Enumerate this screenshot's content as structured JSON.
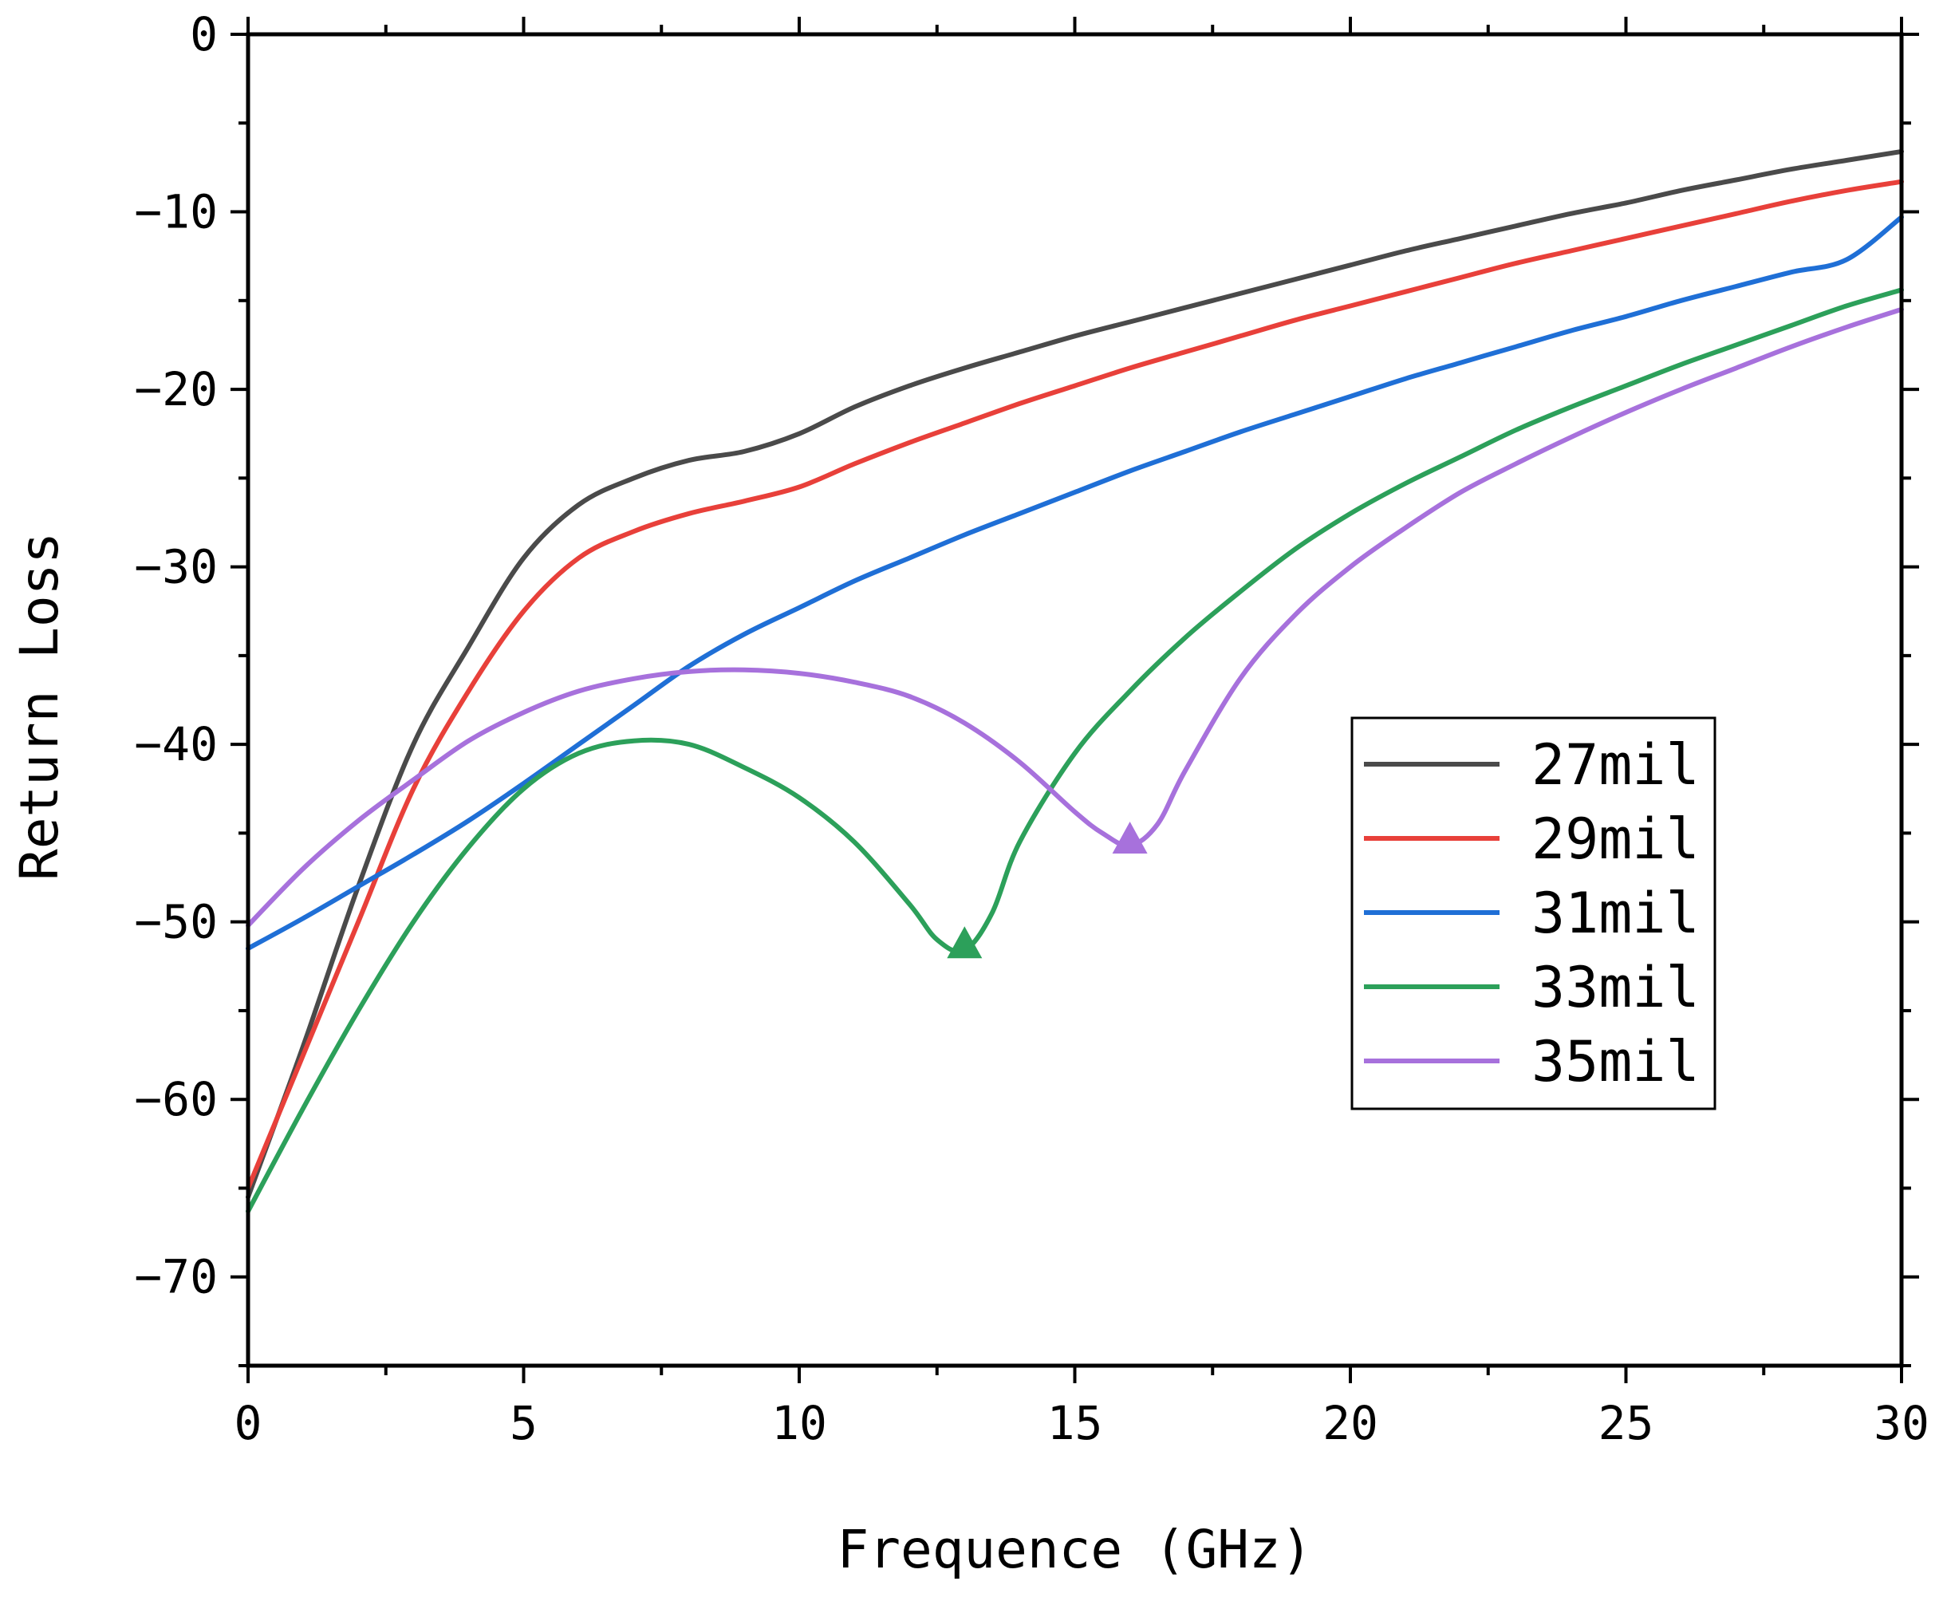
{
  "chart_data": {
    "type": "line",
    "title": "",
    "xlabel": "Frequence (GHz)",
    "ylabel": "Return Loss",
    "xlim": [
      0,
      30
    ],
    "ylim": [
      -75,
      0
    ],
    "xticks": [
      0,
      5,
      10,
      15,
      20,
      25,
      30
    ],
    "yticks": [
      0,
      -10,
      -20,
      -30,
      -40,
      -50,
      -60,
      -70
    ],
    "x_tick_labels": [
      "0",
      "5",
      "10",
      "15",
      "20",
      "25",
      "30"
    ],
    "y_tick_labels": [
      "0",
      "−10",
      "−20",
      "−30",
      "−40",
      "−50",
      "−60",
      "−70"
    ],
    "grid": false,
    "legend_position": "center-right",
    "series": [
      {
        "name": "27mil",
        "color": "#4a4a4a",
        "x": [
          0,
          1,
          2,
          3,
          4,
          5,
          6,
          7,
          8,
          9,
          10,
          11,
          12,
          13,
          14,
          15,
          16,
          17,
          18,
          19,
          20,
          21,
          22,
          23,
          24,
          25,
          26,
          27,
          28,
          29,
          30
        ],
        "y": [
          -65.5,
          -57,
          -48,
          -40,
          -34.5,
          -29.5,
          -26.5,
          -25,
          -24,
          -23.5,
          -22.5,
          -21,
          -19.8,
          -18.8,
          -17.9,
          -17,
          -16.2,
          -15.4,
          -14.6,
          -13.8,
          -13,
          -12.2,
          -11.5,
          -10.8,
          -10.1,
          -9.5,
          -8.8,
          -8.2,
          -7.6,
          -7.1,
          -6.6
        ]
      },
      {
        "name": "29mil",
        "color": "#e8403a",
        "x": [
          0,
          1,
          2,
          3,
          4,
          5,
          6,
          7,
          8,
          9,
          10,
          11,
          12,
          13,
          14,
          15,
          16,
          17,
          18,
          19,
          20,
          21,
          22,
          23,
          24,
          25,
          26,
          27,
          28,
          29,
          30
        ],
        "y": [
          -65,
          -57.5,
          -50,
          -42.5,
          -37,
          -32.5,
          -29.5,
          -28,
          -27,
          -26.3,
          -25.5,
          -24.2,
          -23,
          -21.9,
          -20.8,
          -19.8,
          -18.8,
          -17.9,
          -17,
          -16.1,
          -15.3,
          -14.5,
          -13.7,
          -12.9,
          -12.2,
          -11.5,
          -10.8,
          -10.1,
          -9.4,
          -8.8,
          -8.3
        ]
      },
      {
        "name": "31mil",
        "color": "#1f6fd6",
        "x": [
          0,
          1,
          2,
          3,
          4,
          5,
          6,
          7,
          8,
          9,
          10,
          11,
          12,
          13,
          14,
          15,
          16,
          17,
          18,
          19,
          20,
          21,
          22,
          23,
          24,
          25,
          26,
          27,
          28,
          29,
          30
        ],
        "y": [
          -51.5,
          -49.8,
          -48,
          -46.2,
          -44.3,
          -42.2,
          -40,
          -37.8,
          -35.6,
          -33.8,
          -32.3,
          -30.8,
          -29.5,
          -28.2,
          -27,
          -25.8,
          -24.6,
          -23.5,
          -22.4,
          -21.4,
          -20.4,
          -19.4,
          -18.5,
          -17.6,
          -16.7,
          -15.9,
          -15,
          -14.2,
          -13.4,
          -12.7,
          -10.3
        ]
      },
      {
        "name": "33mil",
        "color": "#2ca05a",
        "x": [
          0,
          1,
          2,
          3,
          4,
          5,
          6,
          7,
          8,
          9,
          10,
          11,
          12,
          12.5,
          13,
          13.5,
          14,
          15,
          16,
          17,
          18,
          19,
          20,
          21,
          22,
          23,
          24,
          25,
          26,
          27,
          28,
          29,
          30
        ],
        "y": [
          -66.3,
          -60.5,
          -55,
          -50,
          -45.8,
          -42.5,
          -40.5,
          -39.8,
          -40,
          -41.3,
          -43,
          -45.5,
          -49,
          -51,
          -51.6,
          -49.5,
          -45.5,
          -40.5,
          -37,
          -34,
          -31.4,
          -29,
          -27,
          -25.3,
          -23.8,
          -22.3,
          -21,
          -19.8,
          -18.6,
          -17.5,
          -16.4,
          -15.3,
          -14.4
        ]
      },
      {
        "name": "35mil",
        "color": "#a771dc",
        "x": [
          0,
          1,
          2,
          3,
          4,
          5,
          6,
          7,
          8,
          9,
          10,
          11,
          12,
          13,
          14,
          15,
          15.5,
          16,
          16.5,
          17,
          18,
          19,
          20,
          21,
          22,
          23,
          24,
          25,
          26,
          27,
          28,
          29,
          30
        ],
        "y": [
          -50.2,
          -47,
          -44.3,
          -42,
          -39.8,
          -38.2,
          -37,
          -36.3,
          -35.9,
          -35.8,
          -36,
          -36.5,
          -37.3,
          -38.8,
          -41,
          -43.8,
          -45,
          -45.7,
          -44.5,
          -41.5,
          -36.3,
          -32.7,
          -30,
          -27.8,
          -25.8,
          -24.2,
          -22.7,
          -21.3,
          -20,
          -18.8,
          -17.6,
          -16.5,
          -15.5
        ]
      }
    ],
    "markers": [
      {
        "series": "33mil",
        "x": 13,
        "y": -51.6,
        "shape": "triangle",
        "color": "#2ca05a"
      },
      {
        "series": "35mil",
        "x": 16,
        "y": -45.7,
        "shape": "triangle",
        "color": "#a771dc"
      }
    ]
  }
}
